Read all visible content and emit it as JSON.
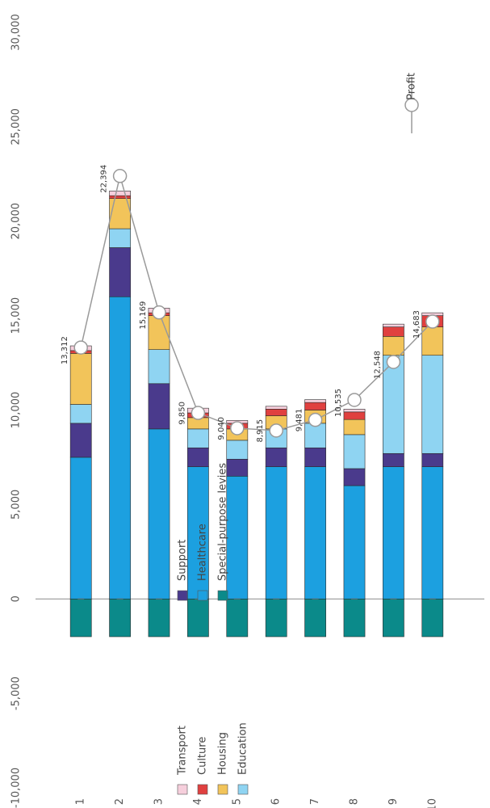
{
  "chart_data": {
    "type": "bar",
    "orientation": "horizontal-rotated",
    "stacked": true,
    "categories": [
      "1",
      "2",
      "3",
      "4",
      "5",
      "6",
      "7",
      "8",
      "9",
      "10"
    ],
    "ylim": [
      -10000,
      30000
    ],
    "yticks": [
      -10000,
      -5000,
      0,
      5000,
      10000,
      15000,
      20000,
      25000,
      30000
    ],
    "ytick_labels": [
      "-10,000",
      "-5,000",
      "0",
      "5,000",
      "10,000",
      "15,000",
      "20,000",
      "25,000",
      "30,000"
    ],
    "series": [
      {
        "name": "Special-purpose levies",
        "color": "#0b8a8a",
        "values": [
          -2000,
          -2000,
          -2000,
          -2000,
          -2000,
          -2000,
          -2000,
          -2000,
          -2000,
          -2000
        ]
      },
      {
        "name": "Healthcare",
        "color": "#1ca0e0",
        "values": [
          7500,
          16000,
          9000,
          7000,
          6500,
          7000,
          7000,
          6000,
          7000,
          7000
        ]
      },
      {
        "name": "Support",
        "color": "#4a3a8c",
        "values": [
          1800,
          2600,
          2400,
          1000,
          900,
          1000,
          1000,
          900,
          700,
          700
        ]
      },
      {
        "name": "Education",
        "color": "#8fd4f2",
        "values": [
          1000,
          1000,
          1800,
          1000,
          1000,
          1000,
          1300,
          1800,
          5200,
          5200
        ]
      },
      {
        "name": "Housing",
        "color": "#f2c45a",
        "values": [
          2700,
          1600,
          1800,
          600,
          600,
          700,
          700,
          800,
          1000,
          1500
        ]
      },
      {
        "name": "Culture",
        "color": "#e0403f",
        "values": [
          150,
          150,
          150,
          250,
          300,
          350,
          400,
          400,
          500,
          600
        ]
      },
      {
        "name": "Transport",
        "color": "#f6cfdc",
        "values": [
          250,
          250,
          250,
          250,
          150,
          150,
          150,
          150,
          150,
          150
        ]
      }
    ],
    "line": {
      "name": "Profit",
      "values": [
        13312,
        22394,
        15169,
        9850,
        9040,
        8915,
        9481,
        10535,
        12548,
        14683
      ],
      "labels": [
        "13,312",
        "22,394",
        "15,169",
        "9,850",
        "9,040",
        "8,915",
        "9,481",
        "10,535",
        "12,548",
        "14,683"
      ]
    },
    "legend": {
      "position": "bottom",
      "items": [
        {
          "label": "Transport",
          "color": "#f6cfdc"
        },
        {
          "label": "Culture",
          "color": "#e0403f"
        },
        {
          "label": "Housing",
          "color": "#f2c45a"
        },
        {
          "label": "Education",
          "color": "#8fd4f2"
        },
        {
          "label": "Support",
          "color": "#4a3a8c"
        },
        {
          "label": "Healthcare",
          "color": "#1ca0e0"
        },
        {
          "label": "Special-purpose levies",
          "color": "#0b8a8a"
        }
      ]
    },
    "grid": false
  }
}
